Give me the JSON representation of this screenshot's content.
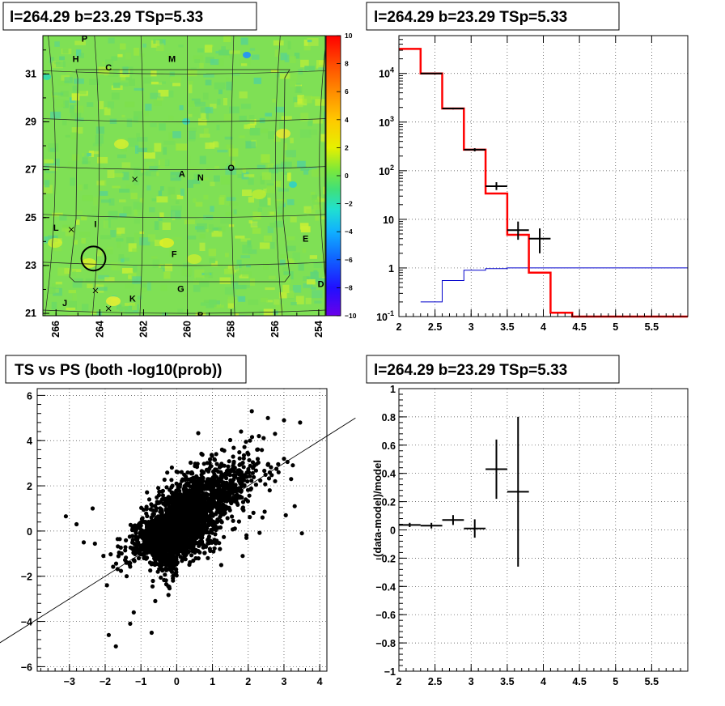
{
  "chart_data": [
    {
      "id": "skymap",
      "type": "heatmap",
      "title": "l=264.29 b=23.29 TSp=5.33",
      "x_ticks": [
        "266",
        "264",
        "262",
        "260",
        "258",
        "256",
        "254"
      ],
      "y_ticks": [
        "31",
        "29",
        "27",
        "25",
        "23",
        "21"
      ],
      "xlim": [
        266.6,
        253.7
      ],
      "ylim": [
        20.9,
        32.6
      ],
      "colorbar_ticks": [
        "10",
        "8",
        "6",
        "4",
        "2",
        "0",
        "−2",
        "−4",
        "−6",
        "−8",
        "−10"
      ],
      "colorbar_range": [
        -10,
        10
      ],
      "source_labels": [
        {
          "text": "P",
          "l": 264.7,
          "b": 32.35
        },
        {
          "text": "H",
          "l": 265.1,
          "b": 31.5
        },
        {
          "text": "C",
          "l": 263.6,
          "b": 31.15
        },
        {
          "text": "M",
          "l": 260.7,
          "b": 31.5
        },
        {
          "text": "A",
          "l": 260.25,
          "b": 26.7
        },
        {
          "text": "N",
          "l": 259.4,
          "b": 26.55
        },
        {
          "text": "O",
          "l": 258.0,
          "b": 26.95
        },
        {
          "text": "L",
          "l": 266.0,
          "b": 24.45
        },
        {
          "text": "I",
          "l": 264.2,
          "b": 24.6
        },
        {
          "text": "E",
          "l": 254.6,
          "b": 24.0
        },
        {
          "text": "F",
          "l": 260.6,
          "b": 23.35
        },
        {
          "text": "G",
          "l": 260.3,
          "b": 21.9
        },
        {
          "text": "D",
          "l": 253.9,
          "b": 22.1
        },
        {
          "text": "K",
          "l": 262.5,
          "b": 21.5
        },
        {
          "text": "J",
          "l": 265.6,
          "b": 21.3
        },
        {
          "text": "B",
          "l": 259.4,
          "b": 20.8
        }
      ],
      "crosses": [
        {
          "l": 262.4,
          "b": 26.6
        },
        {
          "l": 265.3,
          "b": 24.5
        },
        {
          "l": 264.2,
          "b": 21.95
        },
        {
          "l": 263.6,
          "b": 21.2
        }
      ],
      "circle": {
        "l": 264.29,
        "b": 23.29,
        "r": 0.55
      }
    },
    {
      "id": "spectrum",
      "type": "line",
      "title": "l=264.29 b=23.29 TSp=5.33",
      "yscale": "log",
      "x_ticks": [
        "2",
        "2.5",
        "3",
        "3.5",
        "4",
        "4.5",
        "5",
        "5.5"
      ],
      "y_ticks": [
        "10^{-1}",
        "1",
        "10",
        "10^{2}",
        "10^{3}",
        "10^{4}"
      ],
      "xlim": [
        2,
        6
      ],
      "ylim": [
        0.1,
        60000
      ],
      "model_red": {
        "edges": [
          2,
          2.3,
          2.6,
          2.9,
          3.2,
          3.5,
          3.8,
          4.1,
          4.4,
          6.0
        ],
        "values": [
          32000,
          10000,
          1900,
          270,
          34,
          4.8,
          0.8,
          0.12,
          0.1
        ]
      },
      "model_blue": {
        "edges": [
          2,
          2.3,
          2.6,
          2.9,
          3.2,
          3.5,
          3.8,
          6.0
        ],
        "values": [
          0.05,
          0.2,
          0.55,
          0.9,
          0.97,
          1.0,
          1.0
        ]
      },
      "data_points": [
        {
          "x": 2.45,
          "y": 10000,
          "xerr": 0.15,
          "ylo": 9800,
          "yhi": 10200
        },
        {
          "x": 2.75,
          "y": 1900,
          "xerr": 0.15,
          "ylo": 1820,
          "yhi": 1980
        },
        {
          "x": 3.05,
          "y": 270,
          "xerr": 0.15,
          "ylo": 250,
          "yhi": 290
        },
        {
          "x": 3.35,
          "y": 48,
          "xerr": 0.15,
          "ylo": 40,
          "yhi": 58
        },
        {
          "x": 3.65,
          "y": 6,
          "xerr": 0.15,
          "ylo": 3.8,
          "yhi": 9
        },
        {
          "x": 3.95,
          "y": 4,
          "xerr": 0.15,
          "ylo": 2.0,
          "yhi": 6.5
        }
      ]
    },
    {
      "id": "ts_vs_ps",
      "type": "scatter",
      "title": "TS vs PS (both -log10(prob))",
      "x_ticks": [
        "−3",
        "−2",
        "−1",
        "0",
        "1",
        "2",
        "3",
        "4"
      ],
      "y_ticks": [
        "6",
        "4",
        "2",
        "0",
        "−2",
        "−4",
        "−6"
      ],
      "xlim": [
        -3.9,
        4.2
      ],
      "ylim": [
        -6.2,
        6.3
      ],
      "line": {
        "x1": -5.1,
        "y1": -5.1,
        "x2": 5.0,
        "y2": 5.0
      },
      "outliers": [
        [
          -3.1,
          0.65
        ],
        [
          -2.8,
          0.3
        ],
        [
          -2.6,
          -0.5
        ],
        [
          -2.35,
          1.0
        ],
        [
          -2.05,
          -1.1
        ],
        [
          -1.95,
          -2.4
        ],
        [
          -1.9,
          -4.6
        ],
        [
          -1.7,
          -5.1
        ],
        [
          -1.4,
          -2.0
        ],
        [
          -1.3,
          -4.1
        ],
        [
          -1.2,
          -3.6
        ],
        [
          -0.7,
          -4.5
        ],
        [
          -0.6,
          -3.1
        ],
        [
          1.8,
          4.4
        ],
        [
          2.05,
          4.0
        ],
        [
          2.1,
          5.3
        ],
        [
          2.25,
          3.6
        ],
        [
          2.3,
          4.2
        ],
        [
          2.55,
          5.0
        ],
        [
          2.75,
          4.3
        ],
        [
          2.85,
          2.6
        ],
        [
          3.0,
          4.9
        ],
        [
          3.0,
          3.2
        ],
        [
          3.2,
          2.3
        ],
        [
          3.45,
          4.8
        ],
        [
          3.5,
          -0.1
        ],
        [
          3.3,
          1.1
        ],
        [
          2.6,
          1.8
        ],
        [
          2.4,
          0.6
        ],
        [
          3.05,
          0.7
        ]
      ]
    },
    {
      "id": "residuals",
      "type": "scatter",
      "title": "l=264.29 b=23.29 TSp=5.33",
      "ylabel": "(data-model)/model",
      "x_ticks": [
        "2",
        "2.5",
        "3",
        "3.5",
        "4",
        "4.5",
        "5",
        "5.5"
      ],
      "y_ticks": [
        "1",
        "0.8",
        "0.6",
        "0.4",
        "0.2",
        "0",
        "−0.2",
        "−0.4",
        "−0.6",
        "−0.8",
        "−1"
      ],
      "xlim": [
        2,
        6
      ],
      "ylim": [
        -1,
        1
      ],
      "points": [
        {
          "x": 2.15,
          "y": 0.035,
          "xerr": 0.15,
          "yerr": 0.015
        },
        {
          "x": 2.45,
          "y": 0.03,
          "xerr": 0.15,
          "yerr": 0.02
        },
        {
          "x": 2.75,
          "y": 0.07,
          "xerr": 0.15,
          "yerr": 0.035
        },
        {
          "x": 3.05,
          "y": 0.01,
          "xerr": 0.15,
          "yerr": 0.065
        },
        {
          "x": 3.35,
          "y": 0.43,
          "xerr": 0.15,
          "yerr": 0.21
        },
        {
          "x": 3.65,
          "y": 0.27,
          "xerr": 0.15,
          "yerr": 0.53
        }
      ]
    }
  ],
  "colors": {
    "model": "#ff0000",
    "background_model": "#0000cc",
    "data": "#000000"
  }
}
